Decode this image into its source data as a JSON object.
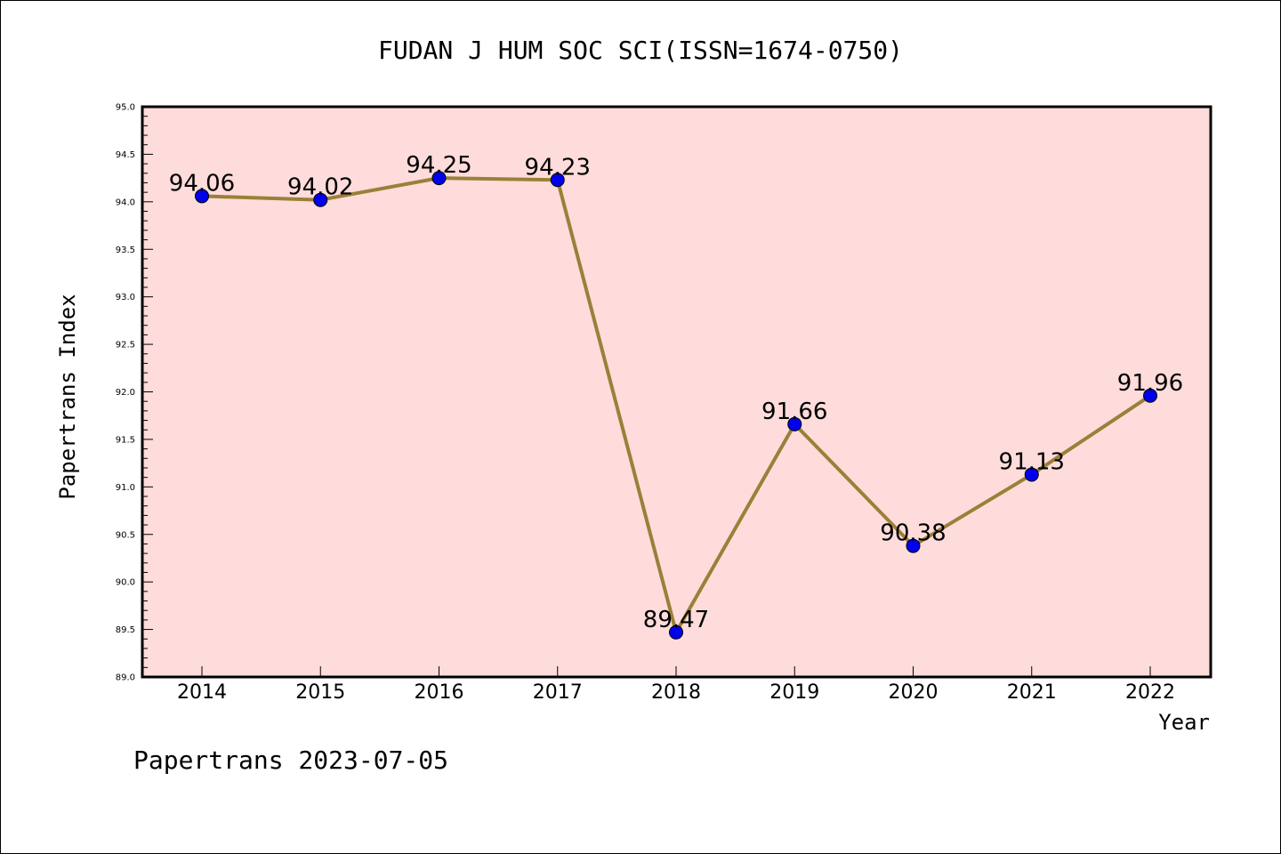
{
  "chart_data": {
    "type": "line",
    "title": "FUDAN J HUM SOC SCI(ISSN=1674-0750)",
    "xlabel": "Year",
    "ylabel": "Papertrans Index",
    "categories": [
      "2014",
      "2015",
      "2016",
      "2017",
      "2018",
      "2019",
      "2020",
      "2021",
      "2022"
    ],
    "series": [
      {
        "values": [
          94.06,
          94.02,
          94.25,
          94.23,
          89.47,
          91.66,
          90.38,
          91.13,
          91.96
        ],
        "labels": [
          "94.06",
          "94.02",
          "94.25",
          "94.23",
          "89.47",
          "91.66",
          "90.38",
          "91.13",
          "91.96"
        ],
        "line_color": "#9a8038",
        "marker_color": "#0000ee"
      }
    ],
    "ylim": [
      89.0,
      95.0
    ],
    "yticks": [
      "89.0",
      "89.5",
      "90.0",
      "90.5",
      "91.0",
      "91.5",
      "92.0",
      "92.5",
      "93.0",
      "93.5",
      "94.0",
      "94.5",
      "95.0"
    ],
    "plot_background": "#fddcdb",
    "grid": false,
    "legend": "none"
  },
  "footer": "Papertrans 2023-07-05"
}
